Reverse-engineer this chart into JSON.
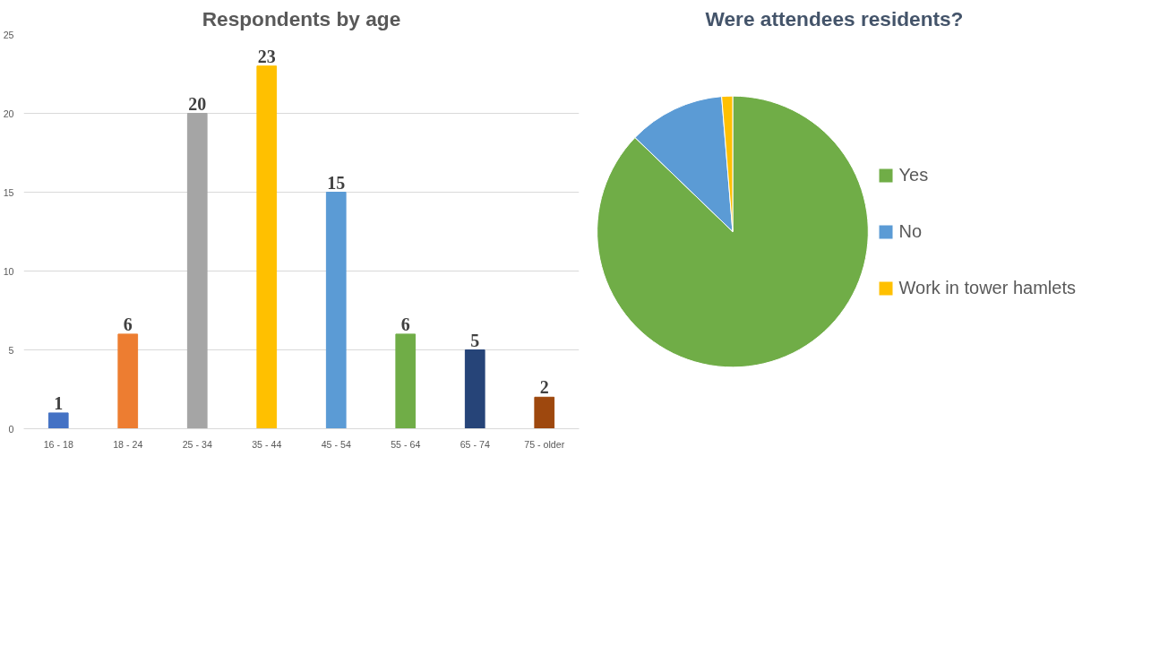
{
  "chart_data": [
    {
      "type": "bar",
      "title": "Respondents by age",
      "categories": [
        "16 - 18",
        "18 - 24",
        "25 - 34",
        "35 - 44",
        "45 - 54",
        "55 - 64",
        "65 - 74",
        "75 - older"
      ],
      "values": [
        1,
        6,
        20,
        23,
        15,
        6,
        5,
        2
      ],
      "colors": [
        "#4472c4",
        "#ed7d31",
        "#a5a5a5",
        "#ffc000",
        "#5b9bd5",
        "#70ad47",
        "#264478",
        "#9e480e"
      ],
      "ylim": [
        0,
        25
      ],
      "yticks": [
        0,
        5,
        10,
        15,
        20,
        25
      ],
      "grid": "y",
      "data_labels": true,
      "legend": false
    },
    {
      "type": "pie",
      "title": "Were attendees residents?",
      "categories": [
        "Yes",
        "No",
        "Work in tower hamlets"
      ],
      "values": [
        87.2,
        11.5,
        1.3
      ],
      "colors": [
        "#70ad47",
        "#5b9bd5",
        "#ffc000"
      ],
      "legend": "right"
    }
  ]
}
